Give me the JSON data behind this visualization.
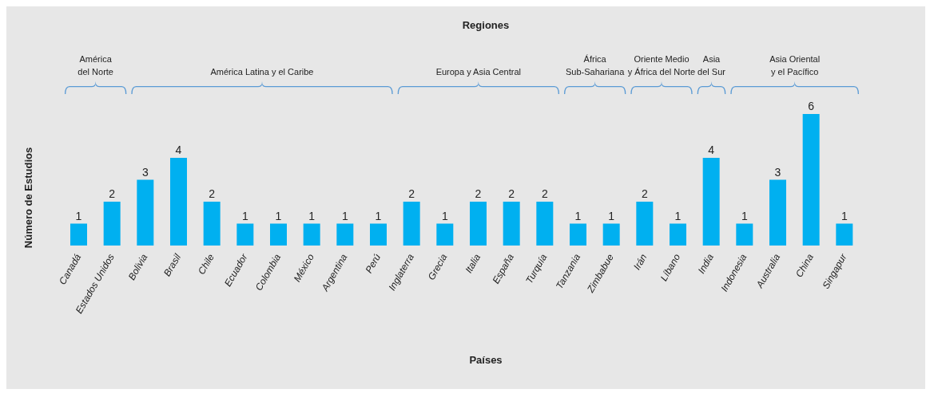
{
  "chart_data": {
    "type": "bar",
    "title": "Regiones",
    "xlabel": "Países",
    "ylabel": "Número de Estudios",
    "categories": [
      "Canadá",
      "Estados Unidos",
      "Bolivia",
      "Brasil",
      "Chile",
      "Ecuador",
      "Colombia",
      "México",
      "Argentina",
      "Perú",
      "Inglaterra",
      "Grecia",
      "Italia",
      "España",
      "Turquía",
      "Tanzania",
      "Zimbabue",
      "Irán",
      "Líbano",
      "India",
      "Indonesia",
      "Australia",
      "China",
      "Singapur"
    ],
    "values": [
      1,
      2,
      3,
      4,
      2,
      1,
      1,
      1,
      1,
      1,
      2,
      1,
      2,
      2,
      2,
      1,
      1,
      2,
      1,
      4,
      1,
      3,
      6,
      1
    ],
    "color": "#00b0f0",
    "data_labels": true,
    "annotations": [
      "América\ndel Norte",
      "América Latina y el Caribe",
      "Europa y Asia Central",
      "África\nSub-Sahariana",
      "Oriente Medio\ny África del Norte",
      "Asia\ndel Sur",
      "Asia Oriental\ny el Pacífico"
    ]
  }
}
